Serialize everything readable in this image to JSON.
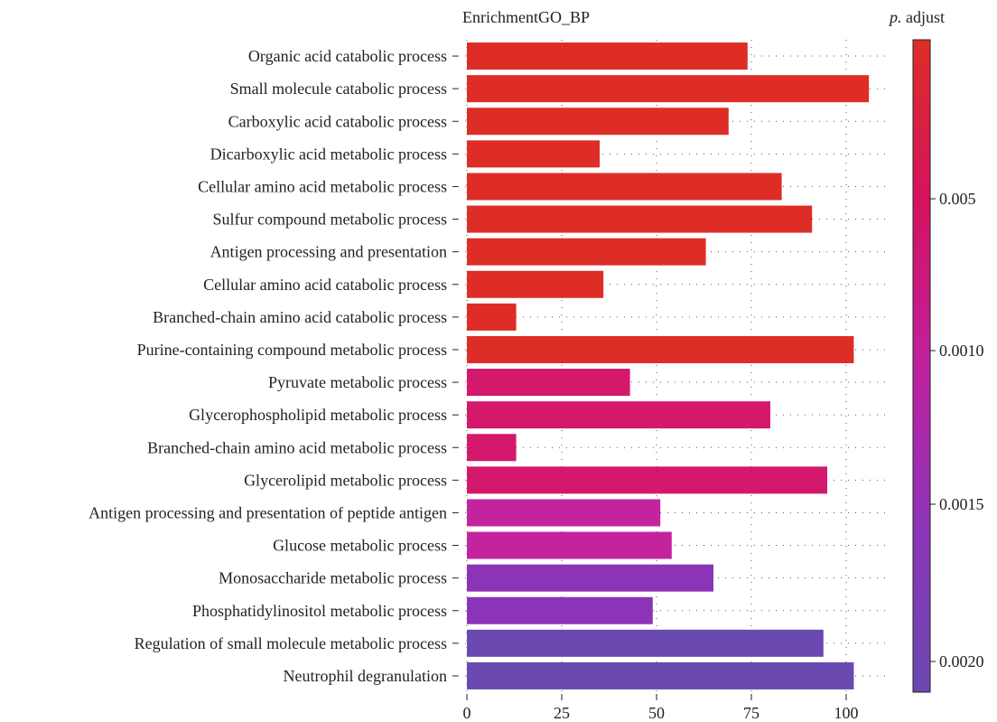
{
  "chart_data": {
    "type": "bar",
    "orientation": "horizontal",
    "title": "EnrichmentGO_BP",
    "xlabel": "",
    "ylabel": "",
    "xlim": [
      0,
      107
    ],
    "x_ticks": [
      "0",
      "25",
      "50",
      "75",
      "100"
    ],
    "x_tick_values": [
      0,
      25,
      50,
      75,
      100
    ],
    "grid": "dotted",
    "categories": [
      "Organic acid catabolic process",
      "Small molecule catabolic process",
      "Carboxylic acid catabolic process",
      "Dicarboxylic acid metabolic process",
      "Cellular amino acid metabolic process",
      "Sulfur compound metabolic process",
      "Antigen processing and presentation",
      "Cellular amino acid catabolic process",
      "Branched-chain amino acid catabolic process",
      "Purine-containing compound metabolic process",
      "Pyruvate metabolic process",
      "Glycerophospholipid metabolic process",
      "Branched-chain amino acid metabolic process",
      "Glycerolipid metabolic process ",
      "Antigen processing and presentation of peptide antigen",
      "Glucose metabolic process",
      "Monosaccharide metabolic process",
      "Phosphatidylinositol metabolic process",
      "Regulation of small molecule metabolic process",
      "Neutrophil degranulation"
    ],
    "values": [
      74,
      106,
      69,
      35,
      83,
      91,
      63,
      36,
      13,
      102,
      43,
      80,
      13,
      95,
      51,
      54,
      65,
      49,
      94,
      102
    ],
    "bar_colors": [
      "#de2d26",
      "#de2d26",
      "#de2d26",
      "#de2d26",
      "#de2d26",
      "#de2d26",
      "#de2d26",
      "#de2d26",
      "#de2d26",
      "#de2d26",
      "#d4186c",
      "#d4186c",
      "#d4186c",
      "#d4186c",
      "#c4239e",
      "#c4239e",
      "#8c34b8",
      "#8c34b8",
      "#6a49b0",
      "#6a49b0"
    ],
    "legend": {
      "title_italic": "p.",
      "title_rest": " adjust",
      "placement": "right",
      "tick_labels": [
        "0.005",
        "0.0010",
        "0.0015",
        "0.0020"
      ],
      "gradient_colors": [
        "#de2d26",
        "#d4125f",
        "#c020a0",
        "#8c34b8",
        "#6a49b0"
      ]
    }
  }
}
